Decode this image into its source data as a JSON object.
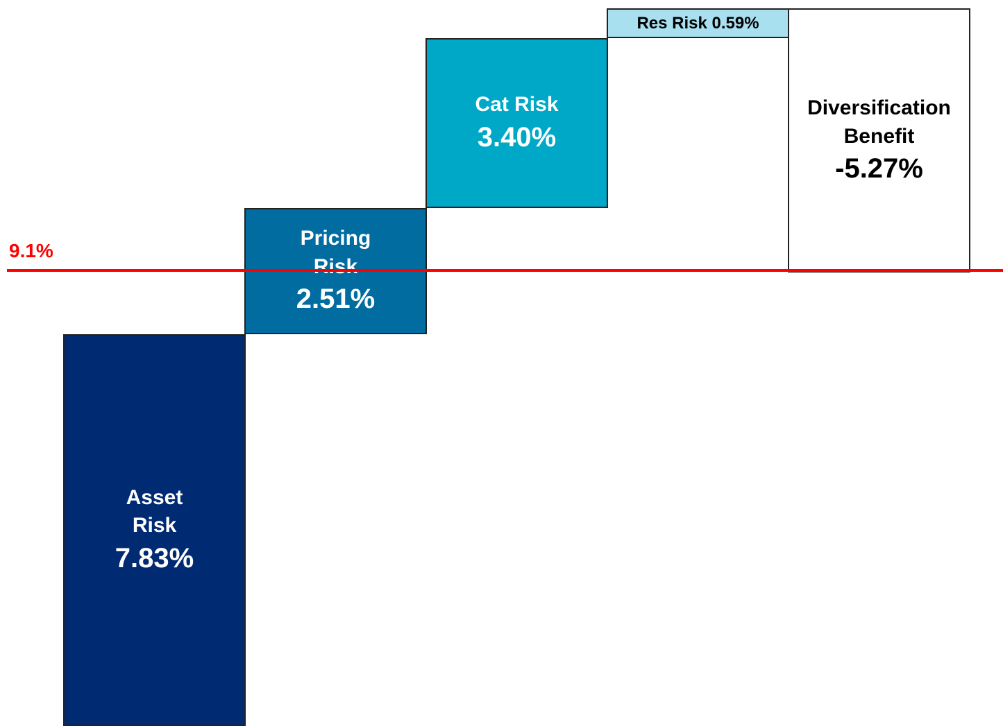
{
  "chart_data": {
    "type": "waterfall",
    "categories": [
      "Asset\nRisk",
      "Pricing\nRisk",
      "Cat Risk",
      "Res Risk",
      "Diversification\nBenefit"
    ],
    "values": [
      7.83,
      2.51,
      3.4,
      0.59,
      -5.27
    ],
    "value_labels": [
      "7.83%",
      "2.51%",
      "3.40%",
      "0.59%",
      "-5.27%"
    ],
    "colors": [
      "#002b72",
      "#006ca0",
      "#00a8c8",
      "#a8e0ef",
      "#ffffff"
    ],
    "ylim": [
      0,
      14.5
    ],
    "reference_line": {
      "value": 9.1,
      "label": "9.1%",
      "color": "#ff0000"
    }
  }
}
